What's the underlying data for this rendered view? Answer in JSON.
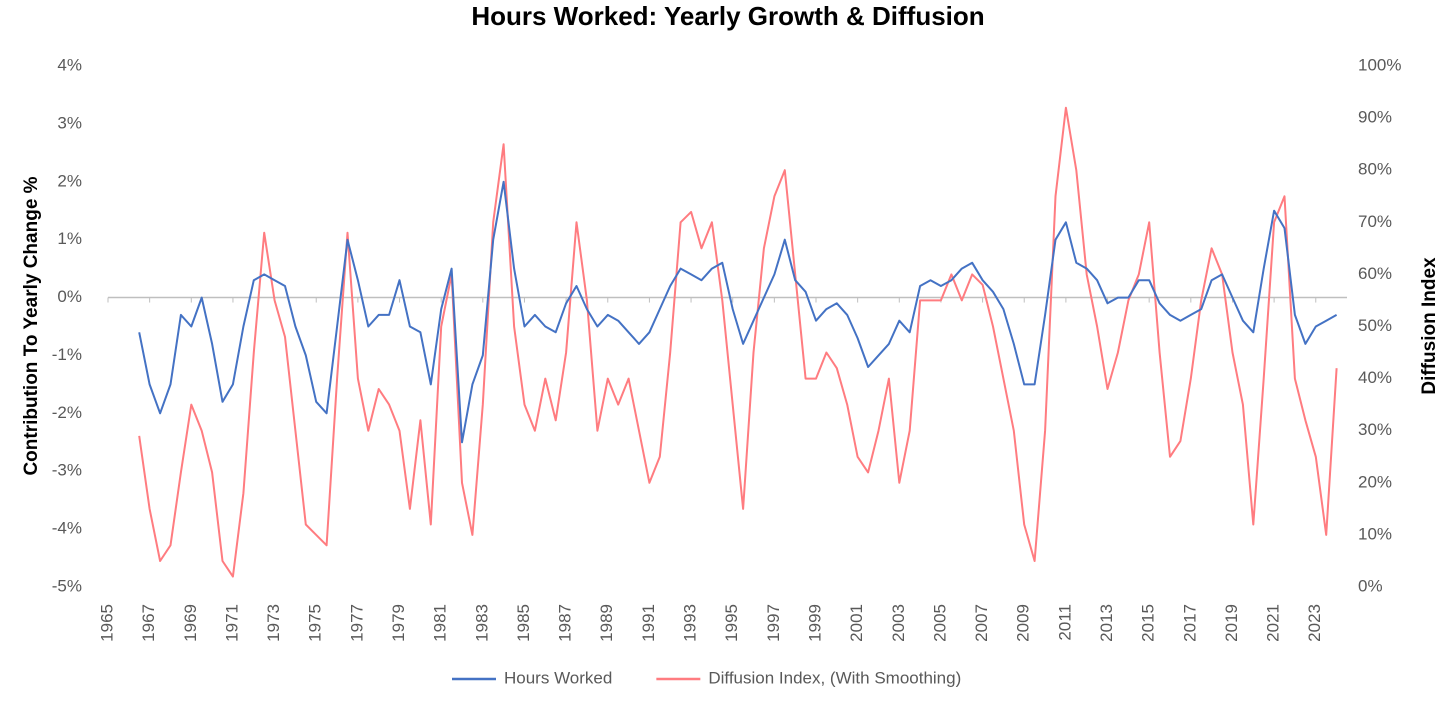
{
  "chart_data": {
    "type": "line",
    "title": "Hours Worked: Yearly Growth & Diffusion",
    "y_label": "Contribution To Yearly Change %",
    "y2_label": "Diffusion Index",
    "x": [
      1966.5,
      1967,
      1967.5,
      1968,
      1968.5,
      1969,
      1969.5,
      1970,
      1970.5,
      1971,
      1971.5,
      1972,
      1972.5,
      1973,
      1973.5,
      1974,
      1974.5,
      1975,
      1975.5,
      1976,
      1976.5,
      1977,
      1977.5,
      1978,
      1978.5,
      1979,
      1979.5,
      1980,
      1980.5,
      1981,
      1981.5,
      1982,
      1982.5,
      1983,
      1983.5,
      1984,
      1984.5,
      1985,
      1985.5,
      1986,
      1986.5,
      1987,
      1987.5,
      1988,
      1988.5,
      1989,
      1989.5,
      1990,
      1990.5,
      1991,
      1991.5,
      1992,
      1992.5,
      1993,
      1993.5,
      1994,
      1994.5,
      1995,
      1995.5,
      1996,
      1996.5,
      1997,
      1997.5,
      1998,
      1998.5,
      1999,
      1999.5,
      2000,
      2000.5,
      2001,
      2001.5,
      2002,
      2002.5,
      2003,
      2003.5,
      2004,
      2004.5,
      2005,
      2005.5,
      2006,
      2006.5,
      2007,
      2007.5,
      2008,
      2008.5,
      2009,
      2009.5,
      2010,
      2010.5,
      2011,
      2011.5,
      2012,
      2012.5,
      2013,
      2013.5,
      2014,
      2014.5,
      2015,
      2015.5,
      2016,
      2016.5,
      2017,
      2017.5,
      2018,
      2018.5,
      2019,
      2019.5,
      2020,
      2020.5,
      2021,
      2021.5,
      2022,
      2022.5,
      2023,
      2023.5,
      2024
    ],
    "series": [
      {
        "name": "Hours Worked",
        "color": "#4472c4",
        "axis": "y",
        "values": [
          -0.6,
          -1.5,
          -2.0,
          -1.5,
          -0.3,
          -0.5,
          0.0,
          -0.8,
          -1.8,
          -1.5,
          -0.5,
          0.3,
          0.4,
          0.3,
          0.2,
          -0.5,
          -1.0,
          -1.8,
          -2.0,
          -0.5,
          1.0,
          0.3,
          -0.5,
          -0.3,
          -0.3,
          0.3,
          -0.5,
          -0.6,
          -1.5,
          -0.2,
          0.5,
          -2.5,
          -1.5,
          -1.0,
          1.0,
          2.0,
          0.5,
          -0.5,
          -0.3,
          -0.5,
          -0.6,
          -0.1,
          0.2,
          -0.2,
          -0.5,
          -0.3,
          -0.4,
          -0.6,
          -0.8,
          -0.6,
          -0.2,
          0.2,
          0.5,
          0.4,
          0.3,
          0.5,
          0.6,
          -0.2,
          -0.8,
          -0.4,
          0.0,
          0.4,
          1.0,
          0.3,
          0.1,
          -0.4,
          -0.2,
          -0.1,
          -0.3,
          -0.7,
          -1.2,
          -1.0,
          -0.8,
          -0.4,
          -0.6,
          0.2,
          0.3,
          0.2,
          0.3,
          0.5,
          0.6,
          0.3,
          0.1,
          -0.2,
          -0.8,
          -1.5,
          -1.5,
          -0.3,
          1.0,
          1.3,
          0.6,
          0.5,
          0.3,
          -0.1,
          0.0,
          0.0,
          0.3,
          0.3,
          -0.1,
          -0.3,
          -0.4,
          -0.3,
          -0.2,
          0.3,
          0.4,
          0.0,
          -0.4,
          -0.6,
          0.5,
          1.5,
          1.2,
          -0.3,
          -0.8,
          -0.5,
          -0.4,
          -0.3
        ]
      },
      {
        "name": "Diffusion Index, (With Smoothing)",
        "color": "#ff7c80",
        "axis": "y2",
        "values": [
          29,
          15,
          5,
          8,
          22,
          35,
          30,
          22,
          5,
          2,
          18,
          45,
          68,
          55,
          48,
          30,
          12,
          10,
          8,
          40,
          68,
          40,
          30,
          38,
          35,
          30,
          15,
          32,
          12,
          50,
          60,
          20,
          10,
          35,
          70,
          85,
          50,
          35,
          30,
          40,
          32,
          45,
          70,
          55,
          30,
          40,
          35,
          40,
          30,
          20,
          25,
          45,
          70,
          72,
          65,
          70,
          55,
          35,
          15,
          45,
          65,
          75,
          80,
          60,
          40,
          40,
          45,
          42,
          35,
          25,
          22,
          30,
          40,
          20,
          30,
          55,
          55,
          55,
          60,
          55,
          60,
          58,
          50,
          40,
          30,
          12,
          5,
          30,
          75,
          92,
          80,
          60,
          50,
          38,
          45,
          55,
          60,
          70,
          45,
          25,
          28,
          40,
          55,
          65,
          60,
          45,
          35,
          12,
          40,
          70,
          75,
          40,
          32,
          25,
          10,
          42
        ]
      }
    ],
    "xlim": [
      1965,
      2024.5
    ],
    "xticks": [
      1965,
      1967,
      1969,
      1971,
      1973,
      1975,
      1977,
      1979,
      1981,
      1983,
      1985,
      1987,
      1989,
      1991,
      1993,
      1995,
      1997,
      1999,
      2001,
      2003,
      2005,
      2007,
      2009,
      2011,
      2013,
      2015,
      2017,
      2019,
      2021,
      2023
    ],
    "ylim": [
      -5,
      4
    ],
    "yticks": [
      {
        "value": -5,
        "label": "-5%"
      },
      {
        "value": -4,
        "label": "-4%"
      },
      {
        "value": -3,
        "label": "-3%"
      },
      {
        "value": -2,
        "label": "-2%"
      },
      {
        "value": -1,
        "label": "-1%"
      },
      {
        "value": 0,
        "label": "0%"
      },
      {
        "value": 1,
        "label": "1%"
      },
      {
        "value": 2,
        "label": "2%"
      },
      {
        "value": 3,
        "label": "3%"
      },
      {
        "value": 4,
        "label": "4%"
      }
    ],
    "y2lim": [
      0,
      100
    ],
    "y2ticks": [
      {
        "value": 0,
        "label": "0%"
      },
      {
        "value": 10,
        "label": "10%"
      },
      {
        "value": 20,
        "label": "20%"
      },
      {
        "value": 30,
        "label": "30%"
      },
      {
        "value": 40,
        "label": "40%"
      },
      {
        "value": 50,
        "label": "50%"
      },
      {
        "value": 60,
        "label": "60%"
      },
      {
        "value": 70,
        "label": "70%"
      },
      {
        "value": 80,
        "label": "80%"
      },
      {
        "value": 90,
        "label": "90%"
      },
      {
        "value": 100,
        "label": "100%"
      }
    ]
  }
}
